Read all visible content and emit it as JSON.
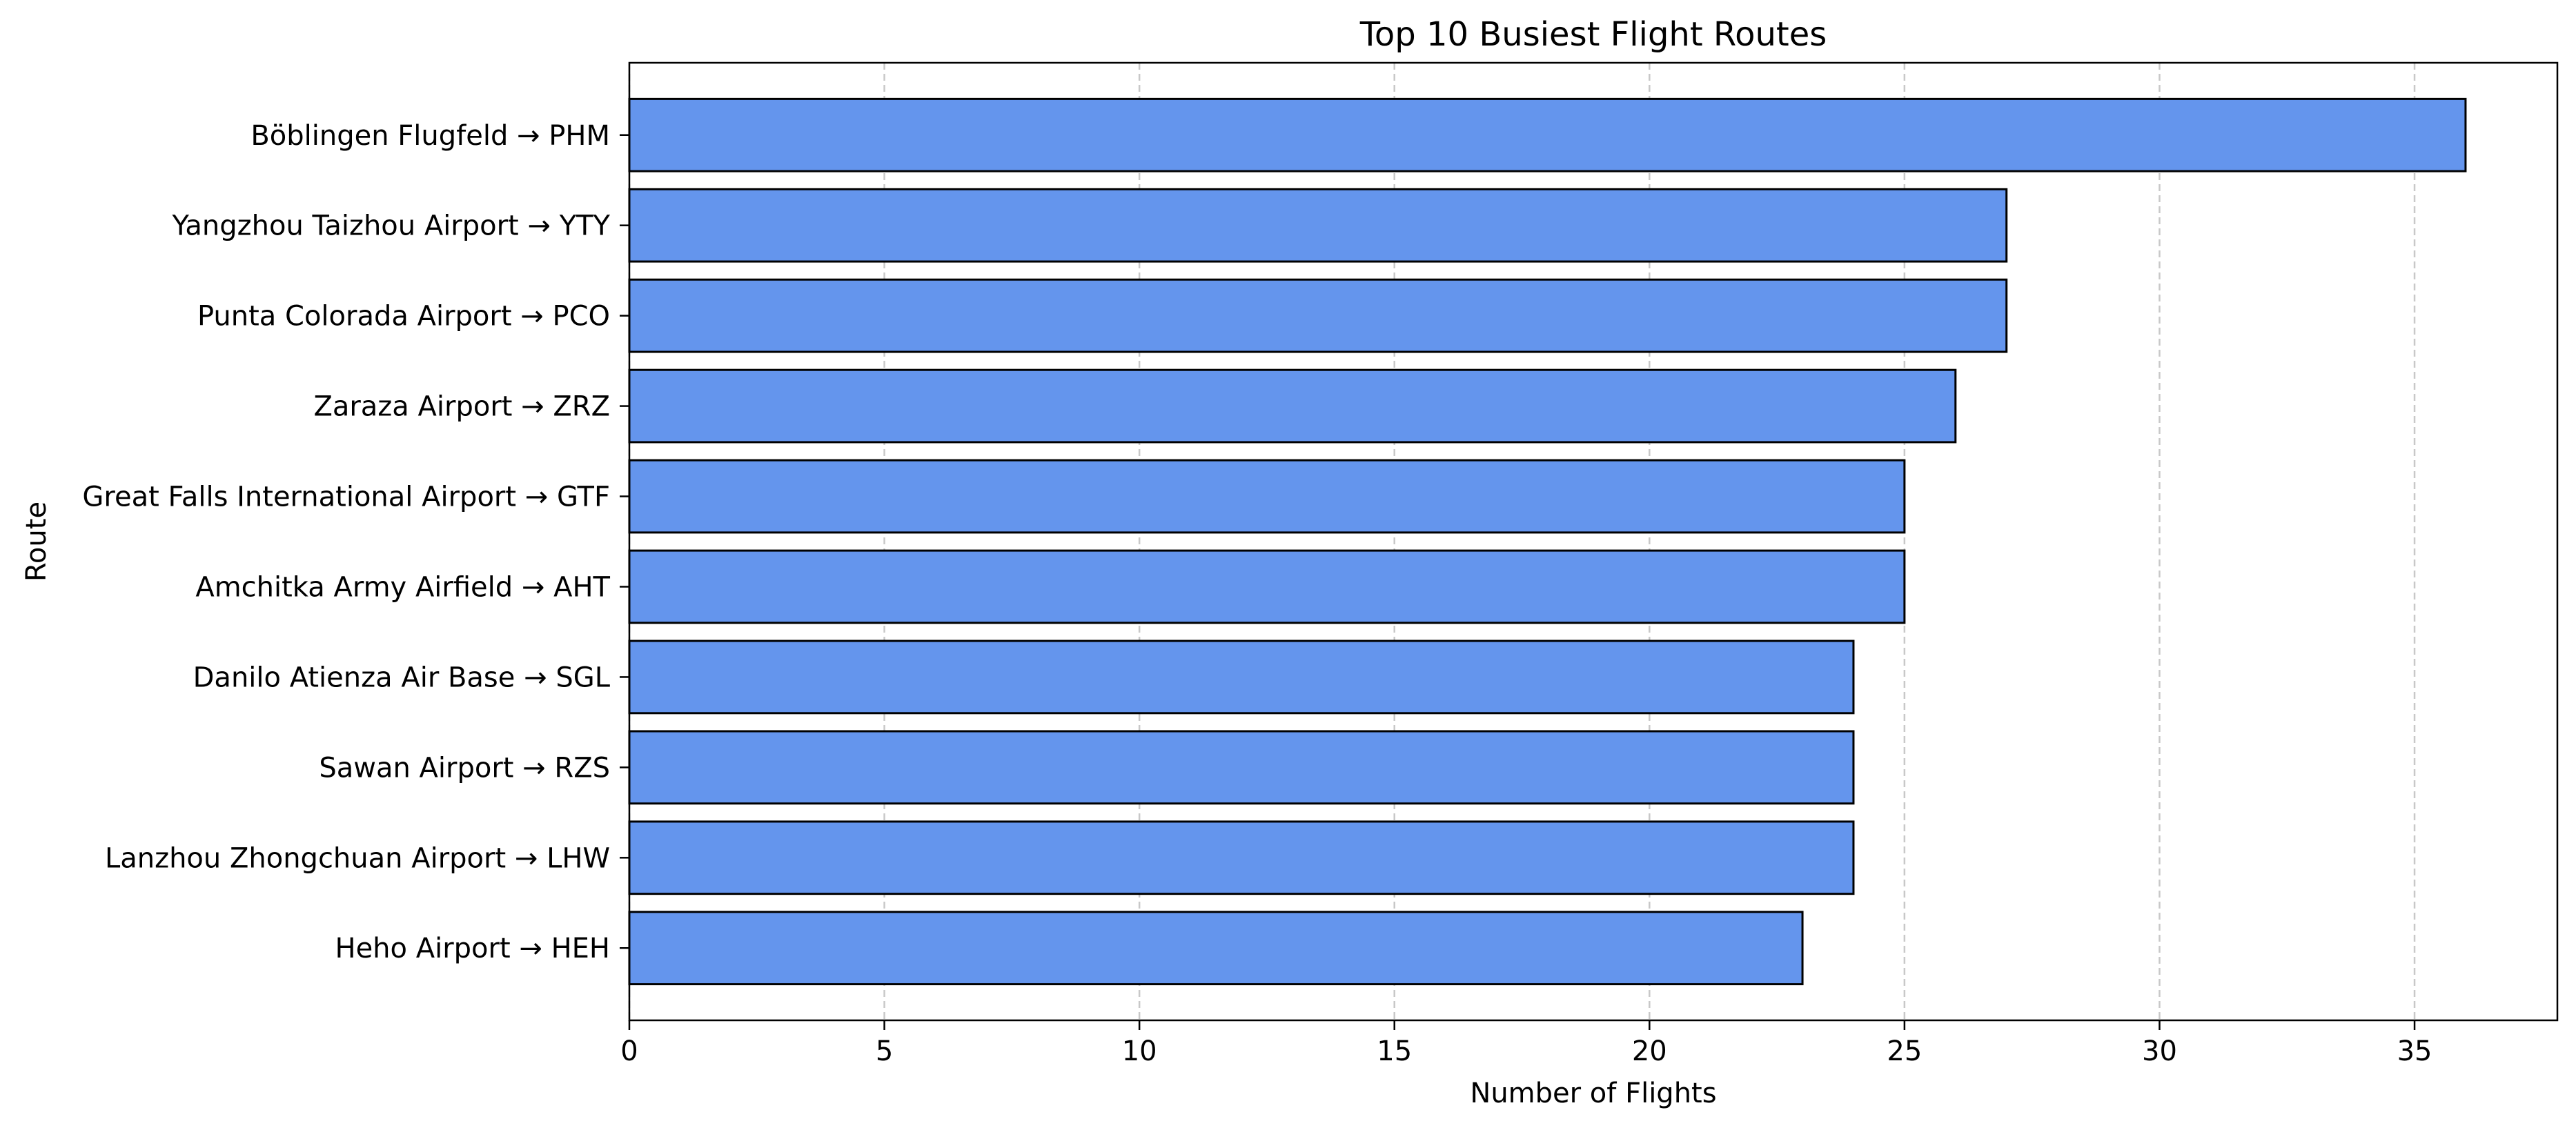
{
  "chart_data": {
    "type": "bar",
    "orientation": "horizontal",
    "title": "Top 10 Busiest Flight Routes",
    "xlabel": "Number of Flights",
    "ylabel": "Route",
    "categories": [
      "Böblingen Flugfeld → PHM",
      "Yangzhou Taizhou Airport → YTY",
      "Punta Colorada Airport → PCO",
      "Zaraza Airport → ZRZ",
      "Great Falls International Airport → GTF",
      "Amchitka Army Airfield → AHT",
      "Danilo Atienza Air Base → SGL",
      "Sawan Airport → RZS",
      "Lanzhou Zhongchuan Airport → LHW",
      "Heho Airport → HEH"
    ],
    "values": [
      36,
      27,
      27,
      26,
      25,
      25,
      24,
      24,
      24,
      23
    ],
    "xlim": [
      0,
      37.8
    ],
    "xticks": [
      0,
      5,
      10,
      15,
      20,
      25,
      30,
      35
    ],
    "grid": "x-dashed",
    "legend": "none",
    "colors": {
      "bar_fill": "#6495ED",
      "bar_edge": "#000000",
      "grid": "#c8c8c8"
    }
  }
}
